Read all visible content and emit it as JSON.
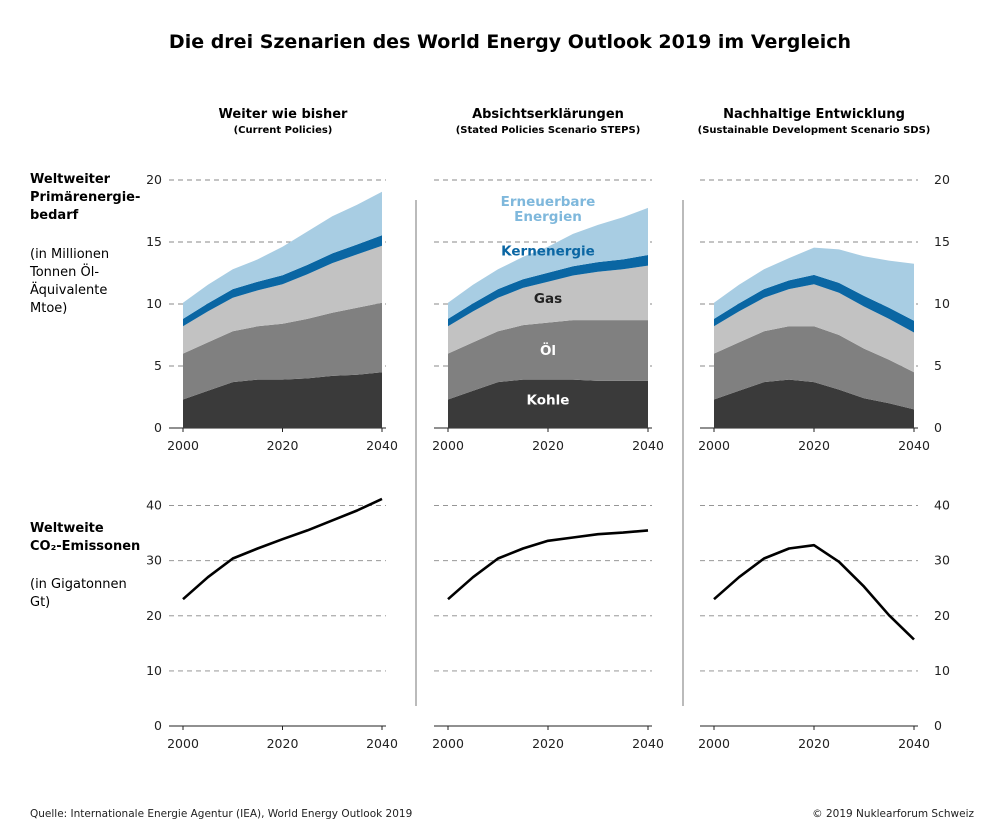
{
  "title": "Die drei Szenarien des World Energy Outlook 2019 im Vergleich",
  "footer": {
    "source": "Quelle: Internationale Energie Agentur (IEA), World Energy Outlook 2019",
    "copyright": "© 2019 Nuklearforum Schweiz"
  },
  "rows": {
    "energy": {
      "label_lines": [
        "Weltweiter",
        "Primärenergie-",
        "bedarf"
      ],
      "unit_lines": [
        "(in Millionen",
        "Tonnen Öl-",
        "Äquivalente",
        "Mtoe)"
      ]
    },
    "co2": {
      "label_lines": [
        "Weltweite",
        "CO₂-Emissonen"
      ],
      "unit_lines": [
        "(in Gigatonnen",
        "Gt)"
      ]
    }
  },
  "colors": {
    "kohle": "#3a3a3a",
    "oel": "#808080",
    "gas": "#c2c2c2",
    "kernenergie": "#0a66a3",
    "erneuerbare": "#a8cde3",
    "grid": "#888888",
    "line": "#000000"
  },
  "chart_data": [
    {
      "type": "area",
      "panel": "Weiter wie bisher",
      "subtitle": "(Current Policies)",
      "x": [
        2000,
        2005,
        2010,
        2015,
        2020,
        2025,
        2030,
        2035,
        2040
      ],
      "ylim": [
        0,
        20
      ],
      "yticks": [
        0,
        5,
        10,
        15,
        20
      ],
      "xticks": [
        2000,
        2020,
        2040
      ],
      "grid": true,
      "stacked": true,
      "series": [
        {
          "name": "Kohle",
          "values": [
            2.3,
            3.0,
            3.7,
            3.9,
            3.9,
            4.0,
            4.2,
            4.3,
            4.5
          ]
        },
        {
          "name": "Öl",
          "values": [
            3.7,
            3.9,
            4.1,
            4.3,
            4.5,
            4.8,
            5.1,
            5.4,
            5.6
          ]
        },
        {
          "name": "Gas",
          "values": [
            2.2,
            2.5,
            2.7,
            2.9,
            3.2,
            3.6,
            4.0,
            4.3,
            4.6
          ]
        },
        {
          "name": "Kernenergie",
          "values": [
            0.6,
            0.65,
            0.7,
            0.7,
            0.72,
            0.75,
            0.78,
            0.8,
            0.85
          ]
        },
        {
          "name": "Erneuerbare Energien",
          "values": [
            1.3,
            1.5,
            1.6,
            1.8,
            2.3,
            2.7,
            3.0,
            3.2,
            3.5
          ]
        }
      ]
    },
    {
      "type": "area",
      "panel": "Absichtserklärungen",
      "subtitle": "(Stated Policies Scenario STEPS)",
      "x": [
        2000,
        2005,
        2010,
        2015,
        2020,
        2025,
        2030,
        2035,
        2040
      ],
      "ylim": [
        0,
        20
      ],
      "yticks": [
        0,
        5,
        10,
        15,
        20
      ],
      "xticks": [
        2000,
        2020,
        2040
      ],
      "grid": true,
      "stacked": true,
      "annotations": [
        {
          "label": "Erneuerbare",
          "x": 2020,
          "y": 17.9,
          "series": "Erneuerbare Energien"
        },
        {
          "label": "Energien",
          "x": 2020,
          "y": 16.7,
          "series": "Erneuerbare Energien"
        },
        {
          "label": "Kernenergie",
          "x": 2020,
          "y": 13.9,
          "series": "Kernenergie"
        },
        {
          "label": "Gas",
          "x": 2020,
          "y": 10.1,
          "series": "Gas"
        },
        {
          "label": "Öl",
          "x": 2020,
          "y": 5.9,
          "series": "Öl"
        },
        {
          "label": "Kohle",
          "x": 2020,
          "y": 1.9,
          "series": "Kohle"
        }
      ],
      "series": [
        {
          "name": "Kohle",
          "values": [
            2.3,
            3.0,
            3.7,
            3.9,
            3.9,
            3.9,
            3.8,
            3.8,
            3.8
          ]
        },
        {
          "name": "Öl",
          "values": [
            3.7,
            3.9,
            4.1,
            4.4,
            4.6,
            4.8,
            4.9,
            4.9,
            4.9
          ]
        },
        {
          "name": "Gas",
          "values": [
            2.2,
            2.5,
            2.7,
            3.0,
            3.3,
            3.6,
            3.9,
            4.1,
            4.4
          ]
        },
        {
          "name": "Kernenergie",
          "values": [
            0.6,
            0.65,
            0.7,
            0.7,
            0.72,
            0.75,
            0.78,
            0.8,
            0.85
          ]
        },
        {
          "name": "Erneuerbare Energien",
          "values": [
            1.3,
            1.5,
            1.6,
            1.8,
            2.1,
            2.6,
            3.0,
            3.4,
            3.8
          ]
        }
      ]
    },
    {
      "type": "area",
      "panel": "Nachhaltige Entwicklung",
      "subtitle": "(Sustainable Development Scenario SDS)",
      "x": [
        2000,
        2005,
        2010,
        2015,
        2020,
        2025,
        2030,
        2035,
        2040
      ],
      "ylim": [
        0,
        20
      ],
      "yticks": [
        0,
        5,
        10,
        15,
        20
      ],
      "xticks": [
        2000,
        2020,
        2040
      ],
      "grid": true,
      "stacked": true,
      "series": [
        {
          "name": "Kohle",
          "values": [
            2.3,
            3.0,
            3.7,
            3.9,
            3.7,
            3.1,
            2.4,
            2.0,
            1.5
          ]
        },
        {
          "name": "Öl",
          "values": [
            3.7,
            3.9,
            4.1,
            4.3,
            4.5,
            4.4,
            4.0,
            3.5,
            3.0
          ]
        },
        {
          "name": "Gas",
          "values": [
            2.2,
            2.5,
            2.7,
            3.0,
            3.4,
            3.4,
            3.4,
            3.3,
            3.2
          ]
        },
        {
          "name": "Kernenergie",
          "values": [
            0.6,
            0.65,
            0.7,
            0.7,
            0.75,
            0.8,
            0.85,
            0.9,
            0.95
          ]
        },
        {
          "name": "Erneuerbare Energien",
          "values": [
            1.3,
            1.5,
            1.6,
            1.8,
            2.2,
            2.7,
            3.2,
            3.8,
            4.6
          ]
        }
      ]
    },
    {
      "type": "line",
      "panel": "Weiter wie bisher",
      "x": [
        2000,
        2005,
        2010,
        2015,
        2020,
        2025,
        2030,
        2035,
        2040
      ],
      "ylim": [
        0,
        45
      ],
      "yticks": [
        0,
        10,
        20,
        30,
        40
      ],
      "xticks": [
        2000,
        2020,
        2040
      ],
      "grid": true,
      "series": [
        {
          "values": [
            23.0,
            27.0,
            30.4,
            32.2,
            33.9,
            35.5,
            37.3,
            39.1,
            41.2
          ]
        }
      ]
    },
    {
      "type": "line",
      "panel": "Absichtserklärungen",
      "x": [
        2000,
        2005,
        2010,
        2015,
        2020,
        2025,
        2030,
        2035,
        2040
      ],
      "ylim": [
        0,
        45
      ],
      "yticks": [
        0,
        10,
        20,
        30,
        40
      ],
      "xticks": [
        2000,
        2020,
        2040
      ],
      "grid": true,
      "series": [
        {
          "values": [
            23.0,
            27.0,
            30.4,
            32.2,
            33.6,
            34.2,
            34.8,
            35.1,
            35.5
          ]
        }
      ]
    },
    {
      "type": "line",
      "panel": "Nachhaltige Entwicklung",
      "x": [
        2000,
        2005,
        2010,
        2015,
        2020,
        2025,
        2030,
        2035,
        2040
      ],
      "ylim": [
        0,
        45
      ],
      "yticks": [
        0,
        10,
        20,
        30,
        40
      ],
      "xticks": [
        2000,
        2020,
        2040
      ],
      "grid": true,
      "series": [
        {
          "values": [
            23.0,
            27.0,
            30.4,
            32.2,
            32.8,
            29.8,
            25.3,
            20.1,
            15.7
          ]
        }
      ]
    }
  ]
}
